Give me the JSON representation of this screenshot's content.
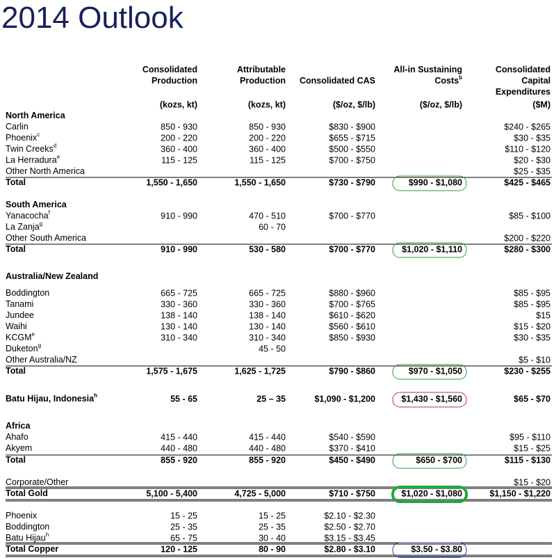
{
  "title": "2014 Outlook",
  "columns": [
    {
      "title": [
        "Consolidated",
        "Production"
      ],
      "unit": "(kozs, kt)"
    },
    {
      "title": [
        "Attributable",
        "Production"
      ],
      "unit": "(kozs, kt)"
    },
    {
      "title": [
        "Consolidated CAS"
      ],
      "unit": "($/oz, $/lb)"
    },
    {
      "title": [
        "All-in Sustaining",
        "Costs"
      ],
      "sup": "b",
      "unit": "($/oz, $/lb)"
    },
    {
      "title": [
        "Consolidated",
        "Capital",
        "Expenditures"
      ],
      "unit": "($M)"
    }
  ],
  "rows": [
    {
      "label": "North America"
    },
    {
      "label": "Carlin",
      "cells": [
        "850 - 930",
        "850 - 930",
        "$830 - $900",
        null,
        "$240 - $265"
      ]
    },
    {
      "label": "Phoenix",
      "sup": "c",
      "cells": [
        "200 - 220",
        "200 - 220",
        "$655 - $715",
        null,
        "$30 - $35"
      ]
    },
    {
      "label": "Twin Creeks",
      "sup": "d",
      "cells": [
        "360 - 400",
        "360 - 400",
        "$500 - $550",
        null,
        "$110 - $120"
      ]
    },
    {
      "label": "La Herradura",
      "sup": "e",
      "cells": [
        "115 - 125",
        "115 - 125",
        "$700 - $750",
        null,
        "$20 - $30"
      ]
    },
    {
      "label": "Other North America",
      "cells": [
        null,
        null,
        null,
        null,
        "$25 - $35"
      ]
    },
    {
      "label": "Total",
      "cells": [
        "1,550 - 1,650",
        "1,550 - 1,650",
        "$730 - $790",
        "$990 - $1,080",
        "$425 - $465"
      ]
    },
    {
      "label": "South America"
    },
    {
      "label": "Yanacocha",
      "sup": "f",
      "cells": [
        "910 - 990",
        "470 - 510",
        "$700 - $770",
        null,
        "$85 - $100"
      ]
    },
    {
      "label": "La Zanja",
      "sup": "g",
      "cells": [
        null,
        "60 - 70",
        null,
        null,
        null
      ]
    },
    {
      "label": "Other South America",
      "cells": [
        null,
        null,
        null,
        null,
        "$200 - $220"
      ]
    },
    {
      "label": "Total",
      "cells": [
        "910 - 990",
        "530 - 580",
        "$700 - $770",
        "$1,020 - $1,110",
        "$280 - $300"
      ]
    },
    {
      "label": "Australia/New Zealand"
    },
    {
      "label": "Boddington",
      "cells": [
        "665 - 725",
        "665 - 725",
        "$880 - $960",
        null,
        "$85 - $95"
      ]
    },
    {
      "label": "Tanami",
      "cells": [
        "330 - 360",
        "330 - 360",
        "$700 - $765",
        null,
        "$85 - $95"
      ]
    },
    {
      "label": "Jundee",
      "cells": [
        "138 - 140",
        "138 - 140",
        "$610 - $620",
        null,
        "$15"
      ]
    },
    {
      "label": "Waihi",
      "cells": [
        "130 - 140",
        "130 - 140",
        "$560 - $610",
        null,
        "$15 - $20"
      ]
    },
    {
      "label": "KCGM",
      "sup": "e",
      "cells": [
        "310 - 340",
        "310 - 340",
        "$850 - $930",
        null,
        "$30 - $35"
      ]
    },
    {
      "label": "Duketon",
      "sup": "g",
      "cells": [
        null,
        "45 - 50",
        null,
        null,
        null
      ]
    },
    {
      "label": "Other Australia/NZ",
      "cells": [
        null,
        null,
        null,
        null,
        "$5 - $10"
      ]
    },
    {
      "label": "Total",
      "cells": [
        "1,575 - 1,675",
        "1,625 - 1,725",
        "$790 - $860",
        "$970 - $1,050",
        "$230 - $255"
      ]
    },
    {
      "label": "Batu Hijau, Indonesia",
      "sup": "h",
      "cells": [
        "55 - 65",
        "25 – 35",
        "$1,090 - $1,200",
        "$1,430 - $1,560",
        "$65 - $70"
      ]
    },
    {
      "label": "Africa"
    },
    {
      "label": "Ahafo",
      "cells": [
        "415 - 440",
        "415 - 440",
        "$540 - $590",
        null,
        "$95 - $110"
      ]
    },
    {
      "label": "Akyem",
      "cells": [
        "440 - 480",
        "440 - 480",
        "$370 - $410",
        null,
        "$15 - $25"
      ]
    },
    {
      "label": "Total",
      "cells": [
        "855 - 920",
        "855 - 920",
        "$450 - $490",
        "$650 - $700",
        "$115 - $130"
      ]
    },
    {
      "label": "Corporate/Other",
      "cells": [
        null,
        null,
        null,
        null,
        "$15 - $20"
      ]
    },
    {
      "label": "Total Gold",
      "cells": [
        "5,100 - 5,400",
        "4,725 - 5,000",
        "$710 - $750",
        "$1,020 - $1,080",
        "$1,150 - $1,220"
      ]
    },
    {
      "label": "Phoenix",
      "cells": [
        "15 - 25",
        "15 - 25",
        "$2.10 - $2.30",
        null,
        null
      ]
    },
    {
      "label": "Boddington",
      "cells": [
        "25 - 35",
        "25 - 35",
        "$2.50 - $2.70",
        null,
        null
      ]
    },
    {
      "label": "Batu Hijau",
      "sup": "h",
      "cells": [
        "65 - 75",
        "30 - 40",
        "$3.15 - $3.45",
        null,
        null
      ]
    },
    {
      "label": "Total Copper",
      "cells": [
        "120 - 125",
        "80 - 90",
        "$2.80 - $3.10",
        "$3.50 - $3.80",
        null
      ]
    }
  ]
}
